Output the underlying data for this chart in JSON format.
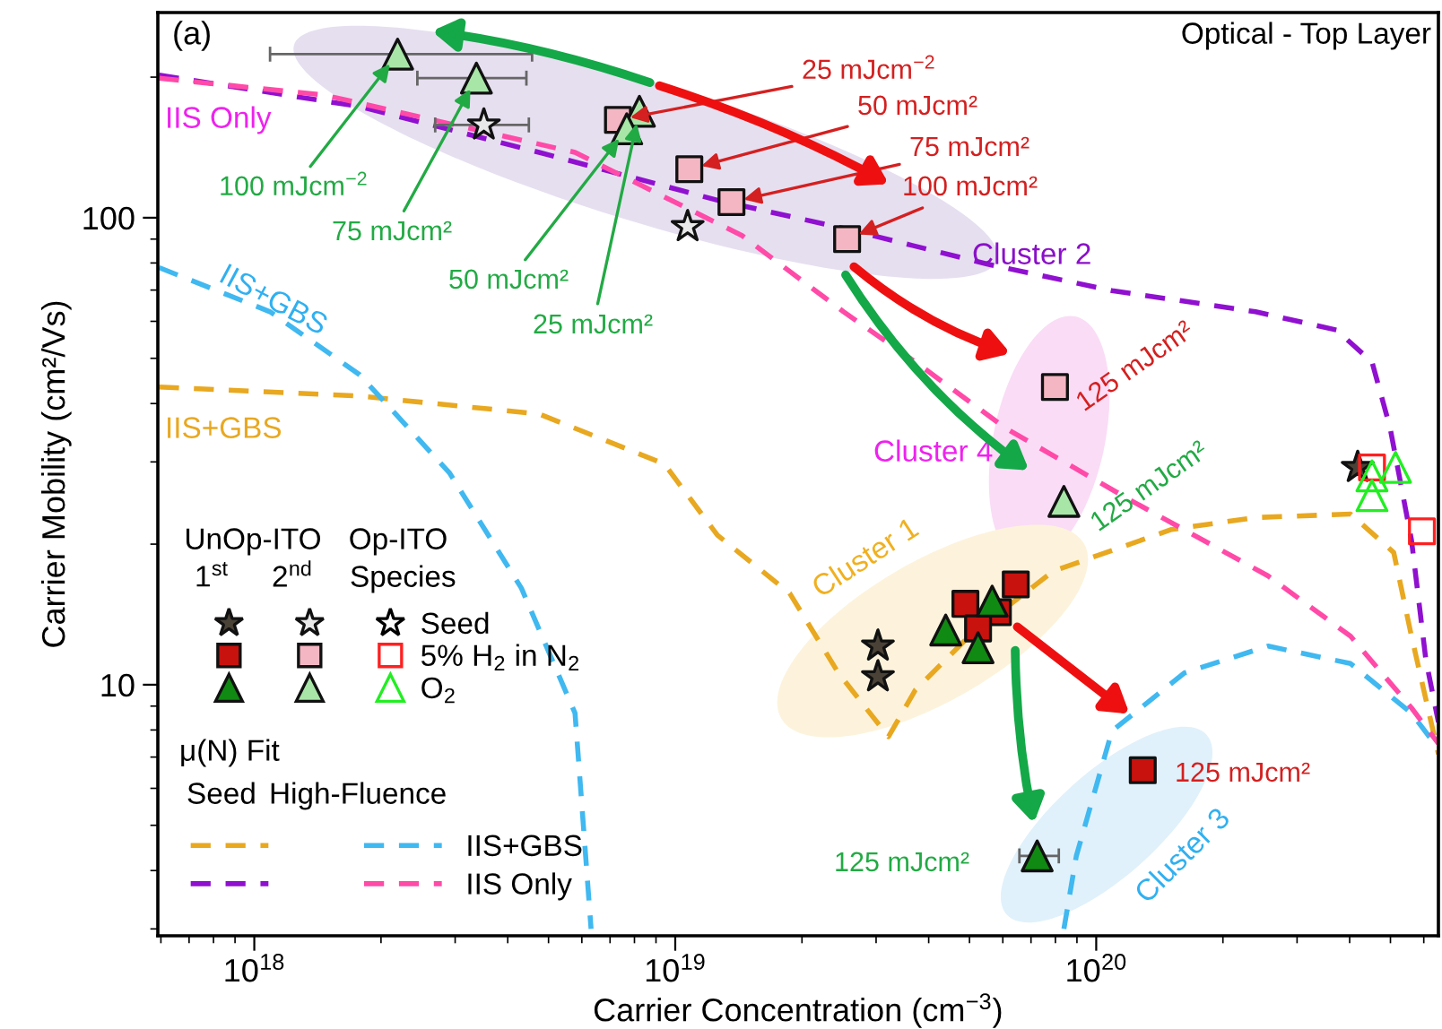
{
  "chart_data": {
    "type": "scatter",
    "xlabel": "Carrier Concentration (cm$^{−3}$)",
    "ylabel": "Carrier Mobility (cm²/Vs)",
    "log": "xy",
    "xlim": [
      5.9e+17,
      6.5e+20
    ],
    "ylim": [
      2.9,
      275
    ],
    "xticks": [
      {
        "value": 1e+18,
        "label": "10$^{18}$"
      },
      {
        "value": 1e+19,
        "label": "10$^{19}$"
      },
      {
        "value": 1e+20,
        "label": "10$^{20}$"
      }
    ],
    "yticks": [
      10,
      100
    ],
    "grid": false,
    "legend": "left",
    "series": [
      {
        "marker": "star",
        "color": "#4a4236",
        "x": [
          3.03e+19,
          3.03e+19,
          4.18e+20
        ],
        "values": [
          12.1,
          10.4,
          29.2
        ]
      },
      {
        "marker": "square",
        "color": "#c8120e",
        "x": [
          6.44e+19,
          4.89e+19,
          5.84e+19,
          5.24e+19,
          1.29e+20
        ],
        "values": [
          16.4,
          14.9,
          14.3,
          13.2,
          6.56
        ]
      },
      {
        "marker": "triangle",
        "color": "#108a12",
        "x": [
          4.39e+19,
          5.66e+19,
          5.24e+19,
          7.24e+19
        ],
        "values": [
          13.1,
          15.1,
          12.0,
          4.3
        ],
        "xerrors": [
          null,
          null,
          null,
          [
            6.57e+19,
            8.15e+19
          ]
        ]
      },
      {
        "marker": "star",
        "color": "#e8e8e8",
        "x": [
          3.51e+18,
          1.07e+19
        ],
        "values": [
          158,
          95.7
        ],
        "xerrors": [
          [
            2.69e+18,
            4.49e+18
          ],
          null
        ]
      },
      {
        "marker": "square",
        "color": "#f4b6c2",
        "x": [
          7.31e+18,
          1.08e+19,
          1.36e+19,
          2.56e+19,
          7.98e+19
        ],
        "values": [
          162,
          127,
          108,
          90.0,
          43.4
        ]
      },
      {
        "marker": "triangle",
        "color": "#a8e6a8",
        "x": [
          2.19e+18,
          3.37e+18,
          8.22e+18,
          7.67e+18,
          8.38e+19
        ],
        "values": [
          224,
          199,
          169,
          155,
          24.7
        ],
        "xerrors": [
          [
            1.09e+18,
            4.57e+18
          ],
          [
            2.44e+18,
            4.43e+18
          ],
          null,
          null,
          null
        ]
      },
      {
        "marker": "star",
        "color": "#000000",
        "name": "Seed"
      },
      {
        "marker": "square",
        "color": "#ff2020",
        "name": "5% H$_{2}$ in N$_{2}$",
        "x": [
          4.52e+20,
          5.94e+20
        ],
        "values": [
          29.2,
          21.3
        ]
      },
      {
        "marker": "triangle",
        "color": "#22ee22",
        "name": "O$_{2}$",
        "x": [
          4.52e+20,
          5.14e+20,
          4.52e+20
        ],
        "values": [
          28.0,
          29.2,
          25.4
        ]
      },
      {
        "type": "line",
        "line_style": "dashed",
        "marker": "none",
        "color": "#e8a820",
        "x": [
          5.94e+17,
          1.78e+18,
          4.75e+18,
          9.42e+18,
          1.26e+19,
          1.87e+19,
          2.44e+19,
          3.21e+19,
          3.72e+19,
          4.99e+19,
          7.9e+19,
          1.51e+20,
          2.39e+20,
          4.02e+20,
          5.09e+20,
          5.61e+20,
          6.5e+20
        ],
        "values": [
          43.4,
          41.5,
          38.0,
          29.7,
          20.9,
          15.7,
          10.6,
          7.74,
          9.75,
          12.7,
          17.5,
          21.5,
          22.8,
          23.2,
          19.2,
          12.7,
          7.1
        ]
      },
      {
        "type": "line",
        "line_style": "dashed",
        "marker": "none",
        "color": "#9010d0",
        "x": [
          5.94e+17,
          1.78e+18,
          4.75e+18,
          1.26e+19,
          2.51e+19,
          5.5e+19,
          1.09e+20,
          2.39e+20,
          3.72e+20,
          4.52e+20,
          4.99e+20,
          5.61e+20,
          6.07e+20,
          6.5e+20
        ],
        "values": [
          202,
          173,
          138,
          109,
          94.9,
          79.6,
          69.8,
          62.9,
          57.5,
          49.1,
          35.5,
          20.4,
          11.3,
          8.31
        ]
      },
      {
        "type": "line",
        "line_style": "dashed",
        "marker": "none",
        "color": "#40b8f0",
        "name": "IIS+GBS",
        "x": [
          5.94e+17,
          1.09e+18,
          1.78e+18,
          2.91e+18,
          4.31e+18,
          5.78e+18,
          6.31e+18,
          2e+19,
          8.38e+19,
          8.97e+19,
          1.09e+20,
          1.62e+20,
          2.56e+20,
          4.02e+20,
          5.61e+20,
          6.5e+20
        ],
        "values": [
          78.2,
          62.9,
          46.1,
          28.4,
          16.1,
          8.69,
          3.0,
          null,
          3.0,
          4.3,
          7.96,
          10.6,
          12.1,
          11.1,
          8.69,
          7.29
        ]
      },
      {
        "type": "line",
        "line_style": "dashed",
        "marker": "none",
        "color": "#ff4aa8",
        "name": "IIS Only",
        "x": [
          5.94e+17,
          1.47e+18,
          5.78e+18,
          1.44e+19,
          2.51e+19,
          3.83e+19,
          6.07e+19,
          1.2e+20,
          2.56e+20,
          4.02e+20,
          5.61e+20,
          6.5e+20
        ],
        "values": [
          199,
          183,
          138,
          91.6,
          62.9,
          48.2,
          35.5,
          24.9,
          17.1,
          12.7,
          8.92,
          7.48
        ]
      }
    ],
    "annotations": [
      "(a)",
      "Optical - Top Layer",
      "IIS Only",
      "IIS+GBS",
      "IIS+GBS",
      "Cluster 1",
      "Cluster 2",
      "Cluster 3",
      "Cluster 4",
      "UnOp-ITO",
      "Op-ITO",
      "1$^{st}$",
      "2$^{nd}$",
      "Species",
      "μ(N) Fit",
      "Seed",
      "High-Fluence",
      {
        "text": "25 mJcm$^{−2}$",
        "x": 7.31e+18,
        "y": 162
      },
      {
        "text": "50 mJcm²",
        "x": 1.08e+19,
        "y": 127
      },
      {
        "text": "75 mJcm²",
        "x": 1.36e+19,
        "y": 108
      },
      {
        "text": "100 mJcm²",
        "x": 2.56e+19,
        "y": 90.0
      },
      {
        "text": "125 mJcm²",
        "x": 7.98e+19,
        "y": 43.4
      },
      {
        "text": "125 mJcm²",
        "x": 1.29e+20,
        "y": 6.56
      },
      {
        "text": "100 mJcm$^{−2}$",
        "x": 2.19e+18,
        "y": 224
      },
      {
        "text": "75 mJcm²",
        "x": 3.37e+18,
        "y": 199
      },
      {
        "text": "50 mJcm²",
        "x": 7.67e+18,
        "y": 155
      },
      {
        "text": "25 mJcm²",
        "x": 8.22e+18,
        "y": 169
      },
      {
        "text": "125 mJcm²",
        "x": 8.38e+19,
        "y": 24.7
      },
      {
        "text": "125 mJcm²",
        "x": 7.24e+19,
        "y": 4.3
      }
    ]
  }
}
